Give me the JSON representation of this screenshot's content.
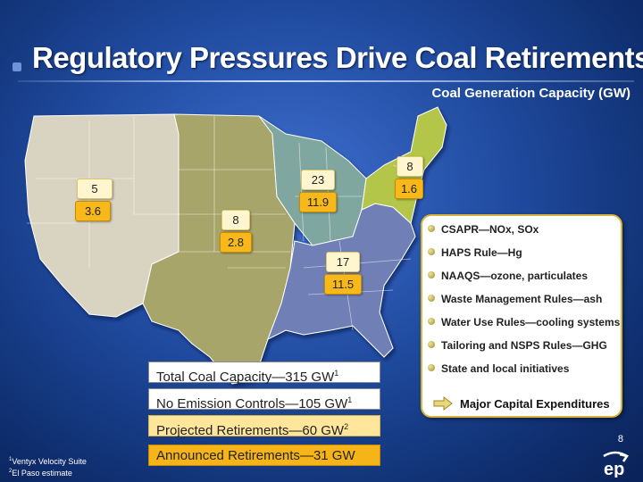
{
  "slide": {
    "title": "Regulatory Pressures Drive Coal Retirements",
    "subtitle": "Coal Generation Capacity (GW)",
    "page_number": "8"
  },
  "regions": [
    {
      "name": "west",
      "color": "#d9d3c2",
      "total": "5",
      "announced": "3.6"
    },
    {
      "name": "central",
      "color": "#a8a56a",
      "total": "8",
      "announced": "2.8"
    },
    {
      "name": "midwest",
      "color": "#7fa7a0",
      "total": "23",
      "announced": "11.9"
    },
    {
      "name": "southeast",
      "color": "#6f7fb5",
      "total": "17",
      "announced": "11.5"
    },
    {
      "name": "northeast",
      "color": "#b4c64a",
      "total": "8",
      "announced": "1.6"
    }
  ],
  "stats": {
    "total_label": "Total Coal Capacity",
    "total_value": "315 GW",
    "total_note": "1",
    "noctrl_label": "No Emission Controls",
    "noctrl_value": "105 GW",
    "noctrl_note": "1",
    "projected_label": "Projected Retirements",
    "projected_value": "60 GW",
    "projected_note": "2",
    "announced_label": "Announced Retirements",
    "announced_value": "31 GW"
  },
  "rules": [
    "CSAPR—NOx, SOx",
    "HAPS Rule—Hg",
    "NAAQS—ozone, particulates",
    "Waste Management Rules—ash",
    "Water Use Rules—cooling systems",
    "Tailoring and NSPS Rules—GHG",
    "State and local initiatives"
  ],
  "capex": "Major Capital Expenditures",
  "footnotes": {
    "n1": "1",
    "text1": "Ventyx Velocity Suite",
    "n2": "2",
    "text2": "El Paso estimate"
  },
  "logo": {
    "text": "ep",
    "color": "#ffffff"
  }
}
